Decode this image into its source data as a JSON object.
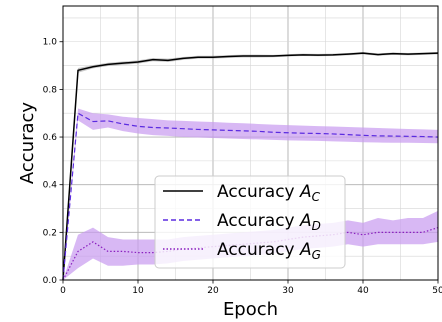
{
  "chart_data": {
    "type": "line",
    "xlabel": "Epoch",
    "ylabel": "Accuracy",
    "xlim": [
      0,
      50
    ],
    "ylim": [
      0,
      1.15
    ],
    "xticks": [
      "0",
      "10",
      "20",
      "30",
      "40",
      "50"
    ],
    "yticks": [
      "0.0",
      "0.2",
      "0.4",
      "0.6",
      "0.8",
      "1.0"
    ],
    "grid": true,
    "legend_position": "lower center",
    "x": [
      0,
      2,
      4,
      6,
      8,
      10,
      12,
      14,
      16,
      18,
      20,
      22,
      24,
      26,
      28,
      30,
      32,
      34,
      36,
      38,
      40,
      42,
      44,
      46,
      48,
      50
    ],
    "series": [
      {
        "name": "Accuracy A_C",
        "legend_main": "Accuracy ",
        "legend_symbol": "A",
        "legend_subscript": "C",
        "color": "#000000",
        "dash": "solid",
        "values": [
          0.0,
          0.88,
          0.895,
          0.905,
          0.91,
          0.915,
          0.925,
          0.922,
          0.93,
          0.935,
          0.935,
          0.938,
          0.94,
          0.94,
          0.94,
          0.943,
          0.945,
          0.944,
          0.945,
          0.948,
          0.952,
          0.946,
          0.95,
          0.948,
          0.95,
          0.952
        ],
        "band_lower": [
          0.0,
          0.87,
          0.888,
          0.898,
          0.903,
          0.908,
          0.918,
          0.915,
          0.924,
          0.929,
          0.929,
          0.932,
          0.934,
          0.934,
          0.935,
          0.938,
          0.94,
          0.939,
          0.94,
          0.943,
          0.947,
          0.941,
          0.945,
          0.943,
          0.945,
          0.947
        ],
        "band_upper": [
          0.0,
          0.89,
          0.902,
          0.912,
          0.917,
          0.922,
          0.932,
          0.929,
          0.936,
          0.941,
          0.941,
          0.944,
          0.946,
          0.946,
          0.945,
          0.948,
          0.95,
          0.949,
          0.95,
          0.953,
          0.957,
          0.951,
          0.955,
          0.953,
          0.955,
          0.957
        ],
        "band_color": "#888888"
      },
      {
        "name": "Accuracy A_D",
        "legend_main": "Accuracy ",
        "legend_symbol": "A",
        "legend_subscript": "D",
        "color": "#5b2be0",
        "dash": "dashed",
        "values": [
          0.0,
          0.7,
          0.665,
          0.668,
          0.655,
          0.645,
          0.64,
          0.638,
          0.635,
          0.632,
          0.63,
          0.628,
          0.626,
          0.624,
          0.62,
          0.618,
          0.616,
          0.615,
          0.613,
          0.61,
          0.607,
          0.605,
          0.604,
          0.603,
          0.602,
          0.6
        ],
        "band_lower": [
          0.0,
          0.67,
          0.63,
          0.64,
          0.625,
          0.615,
          0.608,
          0.605,
          0.6,
          0.598,
          0.596,
          0.594,
          0.592,
          0.59,
          0.588,
          0.586,
          0.585,
          0.584,
          0.582,
          0.58,
          0.578,
          0.577,
          0.576,
          0.576,
          0.575,
          0.574
        ],
        "band_upper": [
          0.0,
          0.72,
          0.7,
          0.695,
          0.685,
          0.68,
          0.675,
          0.67,
          0.668,
          0.665,
          0.663,
          0.66,
          0.658,
          0.655,
          0.652,
          0.65,
          0.648,
          0.646,
          0.644,
          0.642,
          0.64,
          0.638,
          0.636,
          0.634,
          0.632,
          0.63
        ],
        "band_color": "#c89af0"
      },
      {
        "name": "Accuracy A_G",
        "legend_main": "Accuracy ",
        "legend_symbol": "A",
        "legend_subscript": "G",
        "color": "#8a1fbf",
        "dash": "dotted",
        "values": [
          0.0,
          0.12,
          0.16,
          0.12,
          0.12,
          0.115,
          0.115,
          0.12,
          0.13,
          0.135,
          0.14,
          0.145,
          0.15,
          0.155,
          0.16,
          0.17,
          0.18,
          0.185,
          0.19,
          0.2,
          0.19,
          0.2,
          0.2,
          0.2,
          0.2,
          0.22
        ],
        "band_lower": [
          0.0,
          0.05,
          0.09,
          0.06,
          0.06,
          0.065,
          0.065,
          0.07,
          0.08,
          0.085,
          0.09,
          0.095,
          0.1,
          0.105,
          0.11,
          0.12,
          0.13,
          0.135,
          0.14,
          0.15,
          0.14,
          0.15,
          0.15,
          0.15,
          0.15,
          0.16
        ],
        "band_upper": [
          0.0,
          0.19,
          0.22,
          0.18,
          0.17,
          0.17,
          0.17,
          0.17,
          0.18,
          0.185,
          0.19,
          0.195,
          0.2,
          0.205,
          0.21,
          0.22,
          0.23,
          0.235,
          0.24,
          0.25,
          0.24,
          0.26,
          0.25,
          0.26,
          0.26,
          0.29
        ],
        "band_color": "#c89af0"
      }
    ]
  }
}
